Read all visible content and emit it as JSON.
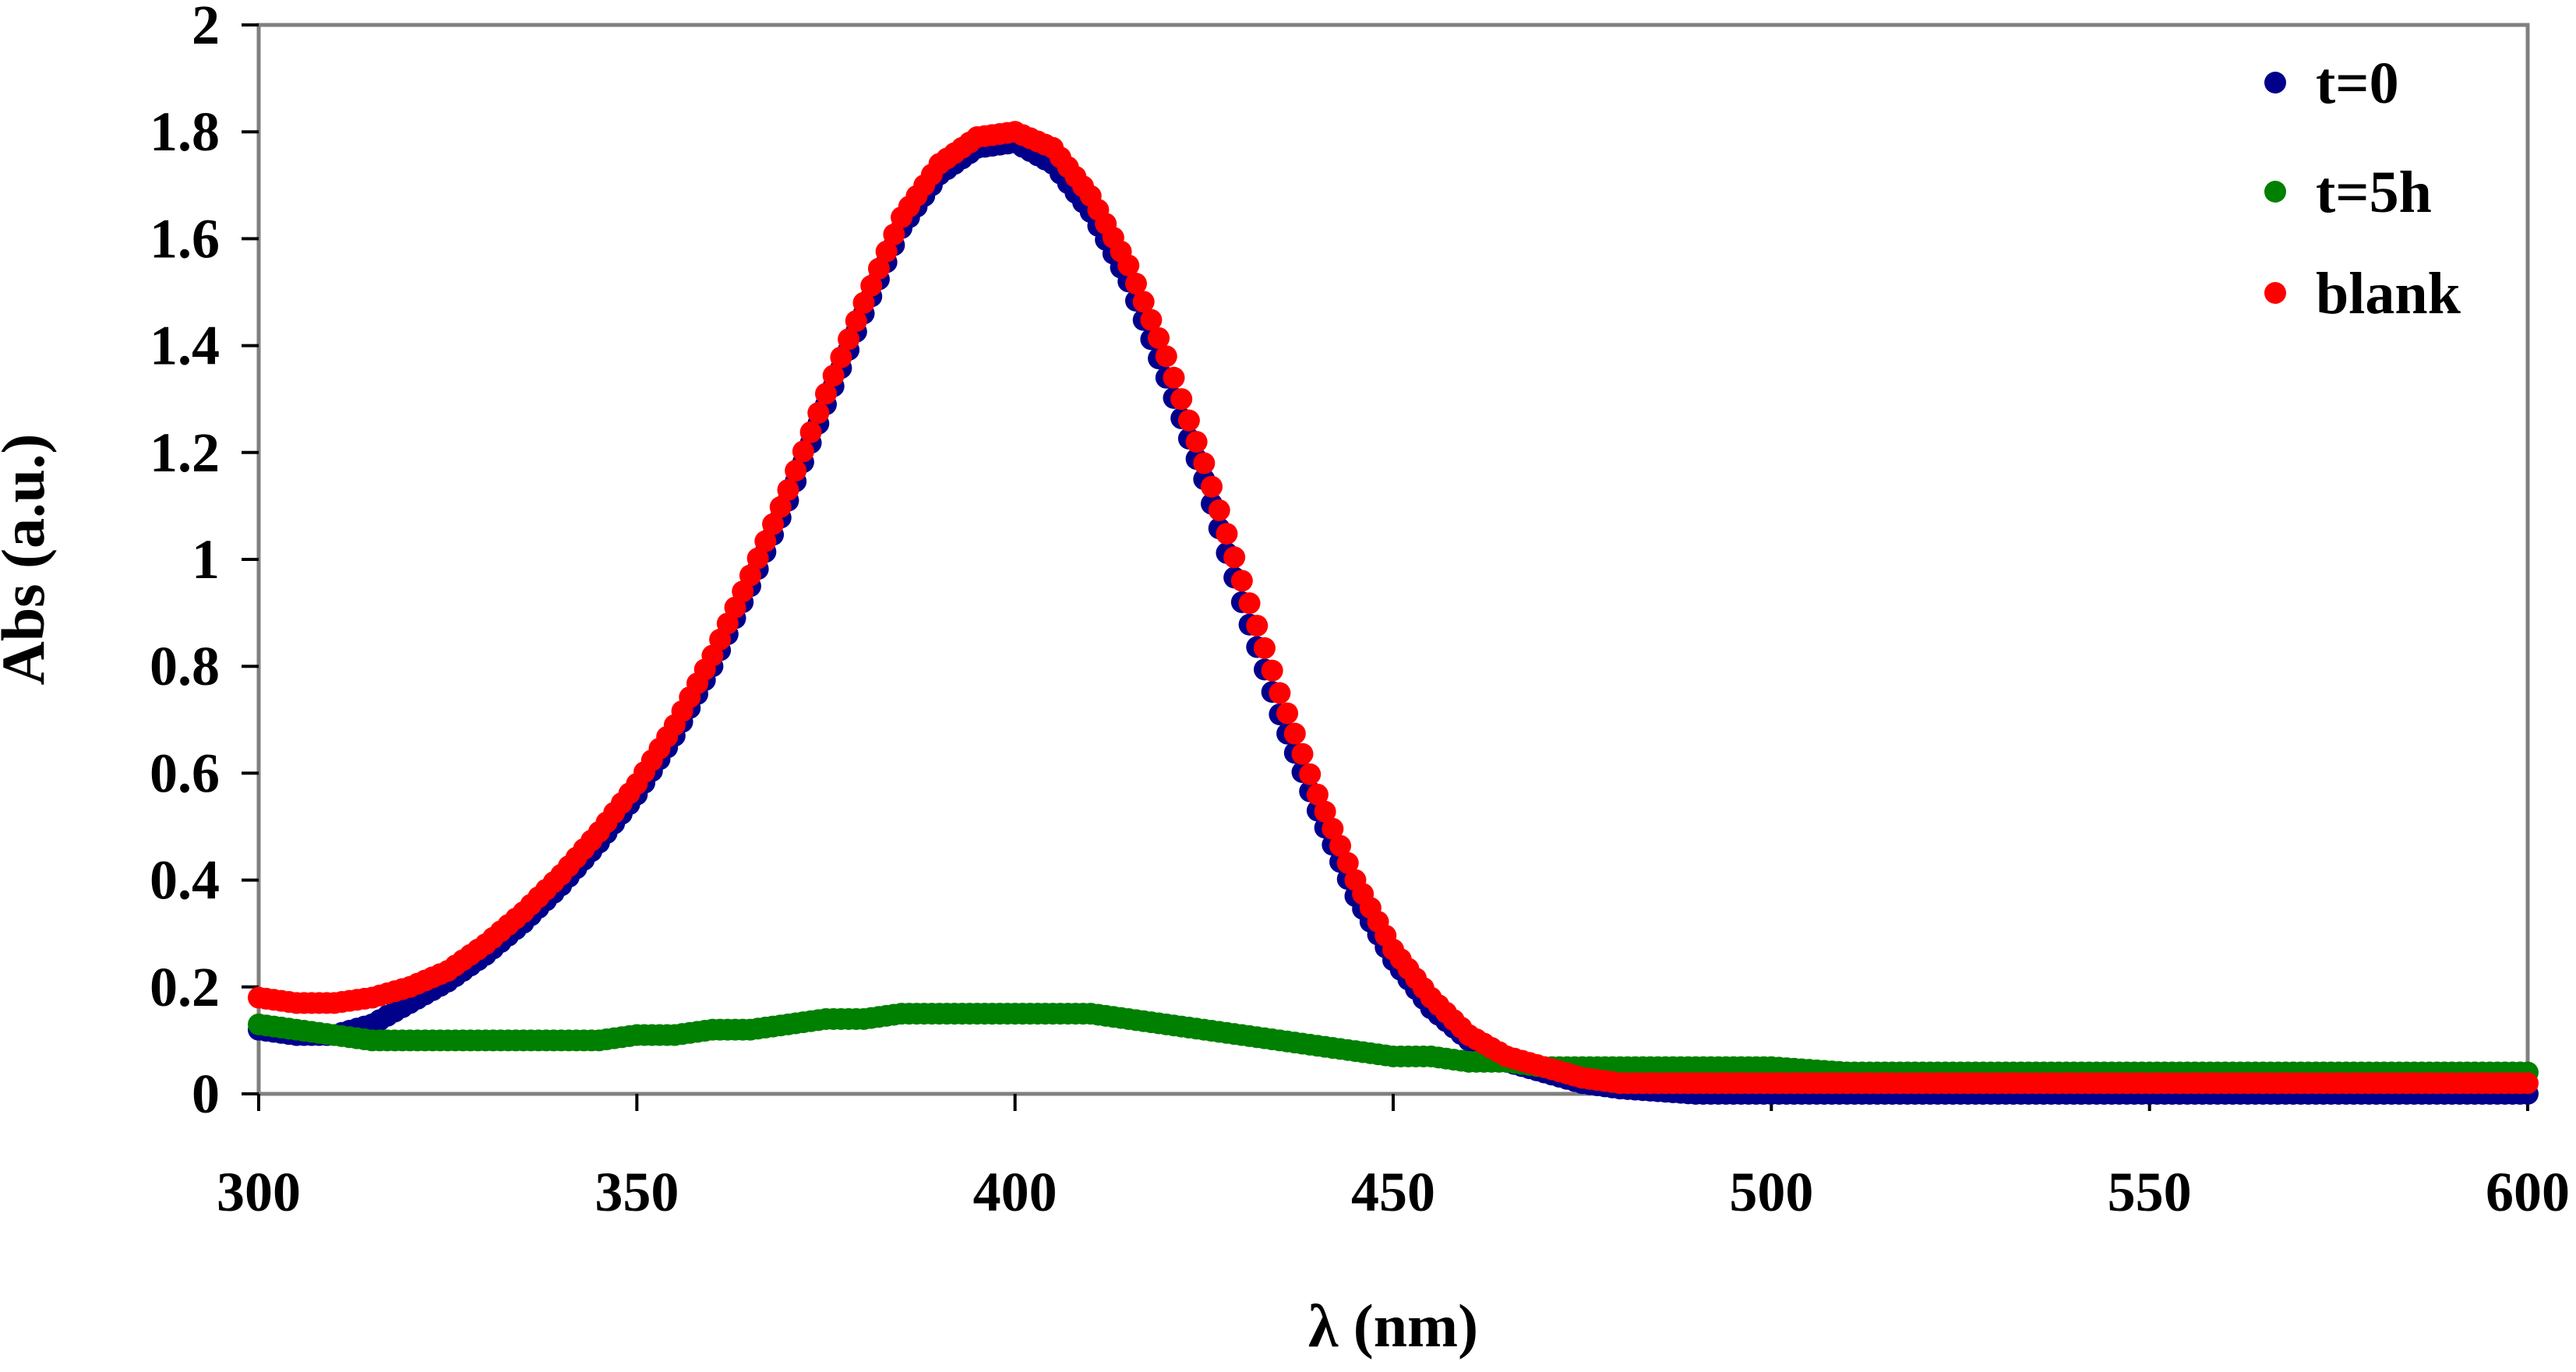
{
  "chart_data": {
    "type": "scatter",
    "xlabel": "λ (nm)",
    "ylabel": "Abs (a.u.)",
    "xlim": [
      300,
      600
    ],
    "ylim": [
      0,
      2
    ],
    "x_ticks": [
      300,
      350,
      400,
      450,
      500,
      550,
      600
    ],
    "x_tick_labels": [
      "300",
      "350",
      "400",
      "450",
      "500",
      "550",
      "600"
    ],
    "y_ticks": [
      0,
      0.2,
      0.4,
      0.6,
      0.8,
      1,
      1.2,
      1.4,
      1.6,
      1.8,
      2
    ],
    "y_tick_labels": [
      "0",
      "0.2",
      "0.4",
      "0.6",
      "0.8",
      "1",
      "1.2",
      "1.4",
      "1.6",
      "1.8",
      "2"
    ],
    "grid": false,
    "legend_position": "top-right",
    "x": [
      300,
      305,
      310,
      315,
      320,
      325,
      330,
      335,
      340,
      345,
      350,
      355,
      360,
      365,
      370,
      375,
      380,
      385,
      390,
      395,
      400,
      405,
      410,
      415,
      420,
      425,
      430,
      435,
      440,
      445,
      450,
      455,
      460,
      465,
      470,
      475,
      480,
      485,
      490,
      495,
      500,
      510,
      520,
      530,
      540,
      550,
      560,
      570,
      580,
      590,
      600
    ],
    "series": [
      {
        "name": "t=0",
        "color": "#00008B",
        "values": [
          0.12,
          0.11,
          0.11,
          0.13,
          0.17,
          0.21,
          0.26,
          0.32,
          0.39,
          0.47,
          0.56,
          0.67,
          0.8,
          0.95,
          1.11,
          1.29,
          1.46,
          1.62,
          1.72,
          1.77,
          1.78,
          1.74,
          1.65,
          1.52,
          1.34,
          1.15,
          0.92,
          0.71,
          0.53,
          0.37,
          0.25,
          0.16,
          0.1,
          0.06,
          0.04,
          0.02,
          0.01,
          0.005,
          0.0,
          0.0,
          0.0,
          0.0,
          0.0,
          0.0,
          0.0,
          0.0,
          0.0,
          0.0,
          0.0,
          0.0,
          0.0
        ]
      },
      {
        "name": "t=5h",
        "color": "#008000",
        "values": [
          0.13,
          0.12,
          0.11,
          0.1,
          0.1,
          0.1,
          0.1,
          0.1,
          0.1,
          0.1,
          0.11,
          0.11,
          0.12,
          0.12,
          0.13,
          0.14,
          0.14,
          0.15,
          0.15,
          0.15,
          0.15,
          0.15,
          0.15,
          0.14,
          0.13,
          0.12,
          0.11,
          0.1,
          0.09,
          0.08,
          0.07,
          0.07,
          0.06,
          0.06,
          0.05,
          0.05,
          0.05,
          0.05,
          0.05,
          0.05,
          0.05,
          0.04,
          0.04,
          0.04,
          0.04,
          0.04,
          0.04,
          0.04,
          0.04,
          0.04,
          0.04
        ]
      },
      {
        "name": "blank",
        "color": "#FF0000",
        "values": [
          0.18,
          0.17,
          0.17,
          0.18,
          0.2,
          0.23,
          0.28,
          0.34,
          0.41,
          0.49,
          0.58,
          0.69,
          0.82,
          0.97,
          1.13,
          1.31,
          1.48,
          1.64,
          1.74,
          1.79,
          1.8,
          1.77,
          1.68,
          1.55,
          1.38,
          1.18,
          0.96,
          0.75,
          0.56,
          0.4,
          0.27,
          0.18,
          0.11,
          0.07,
          0.05,
          0.03,
          0.02,
          0.02,
          0.02,
          0.02,
          0.02,
          0.02,
          0.02,
          0.02,
          0.02,
          0.02,
          0.02,
          0.02,
          0.02,
          0.02,
          0.02
        ]
      }
    ]
  }
}
